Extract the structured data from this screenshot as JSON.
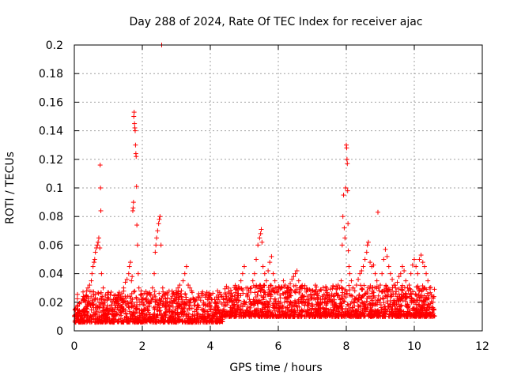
{
  "chart_data": {
    "type": "scatter",
    "title": "Day 288 of 2024, Rate Of TEC Index for receiver ajac",
    "xlabel": "GPS time / hours",
    "ylabel": "ROTI / TECUs",
    "xlim": [
      0,
      12
    ],
    "ylim": [
      0,
      0.2
    ],
    "xticks": [
      "0",
      "2",
      "4",
      "6",
      "8",
      "10",
      "12"
    ],
    "yticks": [
      "0",
      "0.02",
      "0.04",
      "0.06",
      "0.08",
      "0.1",
      "0.12",
      "0.14",
      "0.16",
      "0.18",
      "0.2"
    ],
    "grid": true,
    "marker": "+",
    "color": "#ff0000",
    "data_range_hours": [
      0,
      10.6
    ],
    "series": [
      {
        "name": "ROTI",
        "points": [
          [
            0.05,
            0.01
          ],
          [
            0.1,
            0.018
          ],
          [
            0.15,
            0.012
          ],
          [
            0.2,
            0.02
          ],
          [
            0.25,
            0.014
          ],
          [
            0.3,
            0.022
          ],
          [
            0.35,
            0.025
          ],
          [
            0.4,
            0.03
          ],
          [
            0.45,
            0.032
          ],
          [
            0.5,
            0.035
          ],
          [
            0.52,
            0.04
          ],
          [
            0.55,
            0.045
          ],
          [
            0.58,
            0.048
          ],
          [
            0.6,
            0.05
          ],
          [
            0.62,
            0.055
          ],
          [
            0.65,
            0.058
          ],
          [
            0.68,
            0.06
          ],
          [
            0.7,
            0.062
          ],
          [
            0.72,
            0.065
          ],
          [
            0.75,
            0.058
          ],
          [
            0.76,
            0.116
          ],
          [
            0.77,
            0.1
          ],
          [
            0.78,
            0.084
          ],
          [
            0.8,
            0.04
          ],
          [
            0.85,
            0.03
          ],
          [
            0.9,
            0.02
          ],
          [
            0.95,
            0.015
          ],
          [
            1.0,
            0.012
          ],
          [
            1.05,
            0.016
          ],
          [
            1.1,
            0.018
          ],
          [
            1.15,
            0.022
          ],
          [
            1.2,
            0.025
          ],
          [
            1.25,
            0.02
          ],
          [
            1.3,
            0.018
          ],
          [
            1.35,
            0.022
          ],
          [
            1.4,
            0.026
          ],
          [
            1.45,
            0.03
          ],
          [
            1.5,
            0.034
          ],
          [
            1.55,
            0.036
          ],
          [
            1.6,
            0.04
          ],
          [
            1.62,
            0.045
          ],
          [
            1.65,
            0.048
          ],
          [
            1.68,
            0.035
          ],
          [
            1.7,
            0.038
          ],
          [
            1.72,
            0.084
          ],
          [
            1.73,
            0.086
          ],
          [
            1.74,
            0.09
          ],
          [
            1.75,
            0.15
          ],
          [
            1.76,
            0.153
          ],
          [
            1.77,
            0.145
          ],
          [
            1.78,
            0.142
          ],
          [
            1.79,
            0.14
          ],
          [
            1.8,
            0.13
          ],
          [
            1.81,
            0.124
          ],
          [
            1.82,
            0.122
          ],
          [
            1.83,
            0.101
          ],
          [
            1.84,
            0.074
          ],
          [
            1.86,
            0.06
          ],
          [
            1.88,
            0.04
          ],
          [
            1.9,
            0.03
          ],
          [
            1.95,
            0.025
          ],
          [
            2.0,
            0.02
          ],
          [
            2.05,
            0.018
          ],
          [
            2.1,
            0.022
          ],
          [
            2.15,
            0.015
          ],
          [
            2.2,
            0.02
          ],
          [
            2.25,
            0.025
          ],
          [
            2.3,
            0.03
          ],
          [
            2.35,
            0.04
          ],
          [
            2.38,
            0.055
          ],
          [
            2.4,
            0.06
          ],
          [
            2.42,
            0.065
          ],
          [
            2.45,
            0.07
          ],
          [
            2.48,
            0.075
          ],
          [
            2.5,
            0.078
          ],
          [
            2.52,
            0.08
          ],
          [
            2.55,
            0.06
          ],
          [
            2.57,
            0.2
          ],
          [
            2.6,
            0.03
          ],
          [
            2.65,
            0.025
          ],
          [
            2.7,
            0.02
          ],
          [
            2.75,
            0.018
          ],
          [
            2.8,
            0.015
          ],
          [
            2.85,
            0.018
          ],
          [
            2.9,
            0.02
          ],
          [
            2.95,
            0.025
          ],
          [
            3.0,
            0.028
          ],
          [
            3.05,
            0.03
          ],
          [
            3.1,
            0.032
          ],
          [
            3.15,
            0.028
          ],
          [
            3.2,
            0.035
          ],
          [
            3.25,
            0.04
          ],
          [
            3.3,
            0.045
          ],
          [
            3.35,
            0.032
          ],
          [
            3.4,
            0.03
          ],
          [
            3.45,
            0.028
          ],
          [
            3.5,
            0.022
          ],
          [
            3.55,
            0.018
          ],
          [
            3.6,
            0.015
          ],
          [
            3.65,
            0.012
          ],
          [
            3.7,
            0.01
          ],
          [
            3.75,
            0.015
          ],
          [
            3.8,
            0.02
          ],
          [
            3.85,
            0.025
          ],
          [
            3.9,
            0.027
          ],
          [
            3.95,
            0.022
          ],
          [
            4.0,
            0.015
          ],
          [
            4.05,
            0.012
          ],
          [
            4.1,
            0.01
          ],
          [
            4.15,
            0.013
          ],
          [
            4.2,
            0.012
          ],
          [
            4.25,
            0.015
          ],
          [
            4.3,
            0.014
          ],
          [
            4.35,
            0.012
          ],
          [
            4.4,
            0.015
          ],
          [
            4.45,
            0.018
          ],
          [
            4.5,
            0.02
          ],
          [
            4.55,
            0.022
          ],
          [
            4.6,
            0.025
          ],
          [
            4.65,
            0.02
          ],
          [
            4.7,
            0.018
          ],
          [
            4.75,
            0.022
          ],
          [
            4.8,
            0.025
          ],
          [
            4.85,
            0.03
          ],
          [
            4.9,
            0.035
          ],
          [
            4.95,
            0.04
          ],
          [
            5.0,
            0.045
          ],
          [
            5.05,
            0.03
          ],
          [
            5.1,
            0.025
          ],
          [
            5.15,
            0.022
          ],
          [
            5.2,
            0.03
          ],
          [
            5.25,
            0.035
          ],
          [
            5.3,
            0.04
          ],
          [
            5.35,
            0.05
          ],
          [
            5.4,
            0.06
          ],
          [
            5.45,
            0.065
          ],
          [
            5.48,
            0.068
          ],
          [
            5.5,
            0.071
          ],
          [
            5.52,
            0.062
          ],
          [
            5.55,
            0.045
          ],
          [
            5.6,
            0.04
          ],
          [
            5.65,
            0.035
          ],
          [
            5.7,
            0.042
          ],
          [
            5.75,
            0.048
          ],
          [
            5.8,
            0.052
          ],
          [
            5.85,
            0.04
          ],
          [
            5.9,
            0.035
          ],
          [
            5.95,
            0.03
          ],
          [
            6.0,
            0.028
          ],
          [
            6.05,
            0.025
          ],
          [
            6.1,
            0.03
          ],
          [
            6.15,
            0.035
          ],
          [
            6.2,
            0.032
          ],
          [
            6.25,
            0.028
          ],
          [
            6.3,
            0.03
          ],
          [
            6.35,
            0.033
          ],
          [
            6.4,
            0.036
          ],
          [
            6.45,
            0.038
          ],
          [
            6.5,
            0.04
          ],
          [
            6.55,
            0.042
          ],
          [
            6.6,
            0.035
          ],
          [
            6.65,
            0.03
          ],
          [
            6.7,
            0.025
          ],
          [
            6.75,
            0.022
          ],
          [
            6.8,
            0.02
          ],
          [
            6.85,
            0.018
          ],
          [
            6.9,
            0.022
          ],
          [
            6.95,
            0.025
          ],
          [
            7.0,
            0.028
          ],
          [
            7.05,
            0.025
          ],
          [
            7.1,
            0.022
          ],
          [
            7.15,
            0.02
          ],
          [
            7.2,
            0.018
          ],
          [
            7.25,
            0.02
          ],
          [
            7.3,
            0.022
          ],
          [
            7.35,
            0.025
          ],
          [
            7.4,
            0.028
          ],
          [
            7.45,
            0.025
          ],
          [
            7.5,
            0.022
          ],
          [
            7.55,
            0.02
          ],
          [
            7.6,
            0.018
          ],
          [
            7.65,
            0.015
          ],
          [
            7.7,
            0.018
          ],
          [
            7.75,
            0.025
          ],
          [
            7.8,
            0.03
          ],
          [
            7.85,
            0.035
          ],
          [
            7.88,
            0.06
          ],
          [
            7.9,
            0.08
          ],
          [
            7.92,
            0.095
          ],
          [
            7.94,
            0.072
          ],
          [
            7.96,
            0.065
          ],
          [
            7.98,
            0.1
          ],
          [
            8.0,
            0.13
          ],
          [
            8.01,
            0.128
          ],
          [
            8.02,
            0.12
          ],
          [
            8.03,
            0.117
          ],
          [
            8.04,
            0.098
          ],
          [
            8.05,
            0.075
          ],
          [
            8.06,
            0.056
          ],
          [
            8.08,
            0.045
          ],
          [
            8.1,
            0.04
          ],
          [
            8.15,
            0.035
          ],
          [
            8.2,
            0.03
          ],
          [
            8.25,
            0.028
          ],
          [
            8.3,
            0.032
          ],
          [
            8.35,
            0.036
          ],
          [
            8.4,
            0.04
          ],
          [
            8.45,
            0.042
          ],
          [
            8.5,
            0.045
          ],
          [
            8.55,
            0.05
          ],
          [
            8.6,
            0.055
          ],
          [
            8.62,
            0.06
          ],
          [
            8.65,
            0.062
          ],
          [
            8.7,
            0.048
          ],
          [
            8.75,
            0.045
          ],
          [
            8.8,
            0.046
          ],
          [
            8.85,
            0.04
          ],
          [
            8.9,
            0.035
          ],
          [
            8.93,
            0.083
          ],
          [
            8.95,
            0.03
          ],
          [
            9.0,
            0.032
          ],
          [
            9.05,
            0.04
          ],
          [
            9.1,
            0.05
          ],
          [
            9.15,
            0.057
          ],
          [
            9.2,
            0.052
          ],
          [
            9.25,
            0.045
          ],
          [
            9.3,
            0.04
          ],
          [
            9.35,
            0.036
          ],
          [
            9.4,
            0.032
          ],
          [
            9.45,
            0.03
          ],
          [
            9.5,
            0.034
          ],
          [
            9.55,
            0.038
          ],
          [
            9.6,
            0.04
          ],
          [
            9.65,
            0.045
          ],
          [
            9.7,
            0.042
          ],
          [
            9.75,
            0.035
          ],
          [
            9.8,
            0.03
          ],
          [
            9.85,
            0.032
          ],
          [
            9.9,
            0.04
          ],
          [
            9.95,
            0.046
          ],
          [
            10.0,
            0.05
          ],
          [
            10.05,
            0.045
          ],
          [
            10.1,
            0.04
          ],
          [
            10.15,
            0.05
          ],
          [
            10.2,
            0.053
          ],
          [
            10.25,
            0.048
          ],
          [
            10.3,
            0.045
          ],
          [
            10.35,
            0.04
          ],
          [
            10.4,
            0.035
          ],
          [
            10.45,
            0.03
          ],
          [
            10.5,
            0.025
          ],
          [
            10.55,
            0.02
          ],
          [
            10.58,
            0.015
          ]
        ]
      }
    ]
  }
}
